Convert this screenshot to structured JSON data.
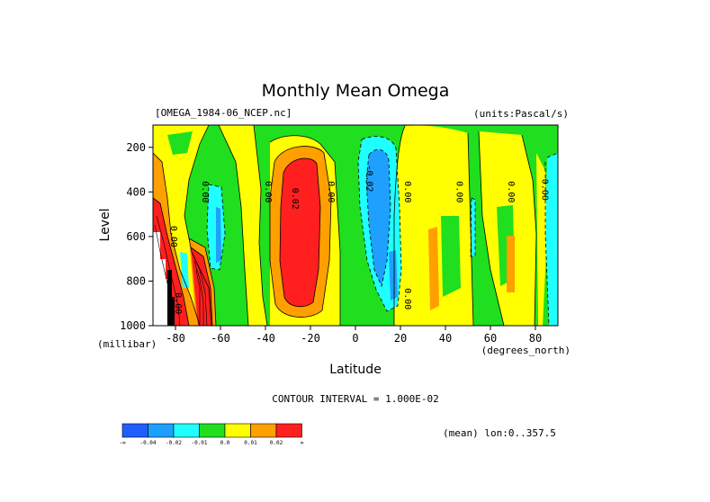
{
  "chart_data": {
    "type": "heatmap",
    "subtype": "filled-contour",
    "title": "Monthly Mean Omega",
    "dataset_label": "[OMEGA_1984-06_NCEP.nc]",
    "units_label": "(units:Pascal/s)",
    "xlabel": "Latitude",
    "x_units": "(degrees_north)",
    "ylabel": "Level",
    "y_units": "(millibar)",
    "xlim": [
      -90,
      90
    ],
    "ylim": [
      1000,
      100
    ],
    "x_ticks": [
      -80,
      -60,
      -40,
      -20,
      0,
      20,
      40,
      60,
      80
    ],
    "x_tick_labels": [
      "-80",
      "-60",
      "-40",
      "-20",
      "0",
      "20",
      "40",
      "60",
      "80"
    ],
    "y_ticks": [
      200,
      400,
      600,
      800,
      1000
    ],
    "y_tick_labels": [
      "200",
      "400",
      "600",
      "800",
      "1000"
    ],
    "contour_interval_text": "CONTOUR INTERVAL = 1.000E-02",
    "footer_text": "(mean) lon:0..357.5",
    "colorbar": {
      "colors": [
        "#1f5fff",
        "#1fa0ff",
        "#1fffff",
        "#1fdf1f",
        "#ffff00",
        "#ff9f00",
        "#ff1f1f"
      ],
      "labels": [
        "-∞",
        "-0.04",
        "-0.02",
        "-0.01",
        "0.0",
        "0.01",
        "0.02",
        "∞"
      ]
    },
    "contour_labels": [
      {
        "text": "0.00",
        "lat": -82,
        "lev": 600
      },
      {
        "text": "0.00",
        "lat": -80,
        "lev": 900
      },
      {
        "text": "0.00",
        "lat": -68,
        "lev": 400
      },
      {
        "text": "0.00",
        "lat": -40,
        "lev": 400
      },
      {
        "text": "0.02",
        "lat": -28,
        "lev": 430
      },
      {
        "text": "0.00",
        "lat": -12,
        "lev": 400
      },
      {
        "text": "-0.02",
        "lat": 5,
        "lev": 340
      },
      {
        "text": "0.00",
        "lat": 22,
        "lev": 400
      },
      {
        "text": "0.00",
        "lat": 22,
        "lev": 880
      },
      {
        "text": "0.00",
        "lat": 45,
        "lev": 400
      },
      {
        "text": "0.00",
        "lat": 68,
        "lev": 400
      },
      {
        "text": "0.00",
        "lat": 83,
        "lev": 390
      }
    ]
  }
}
